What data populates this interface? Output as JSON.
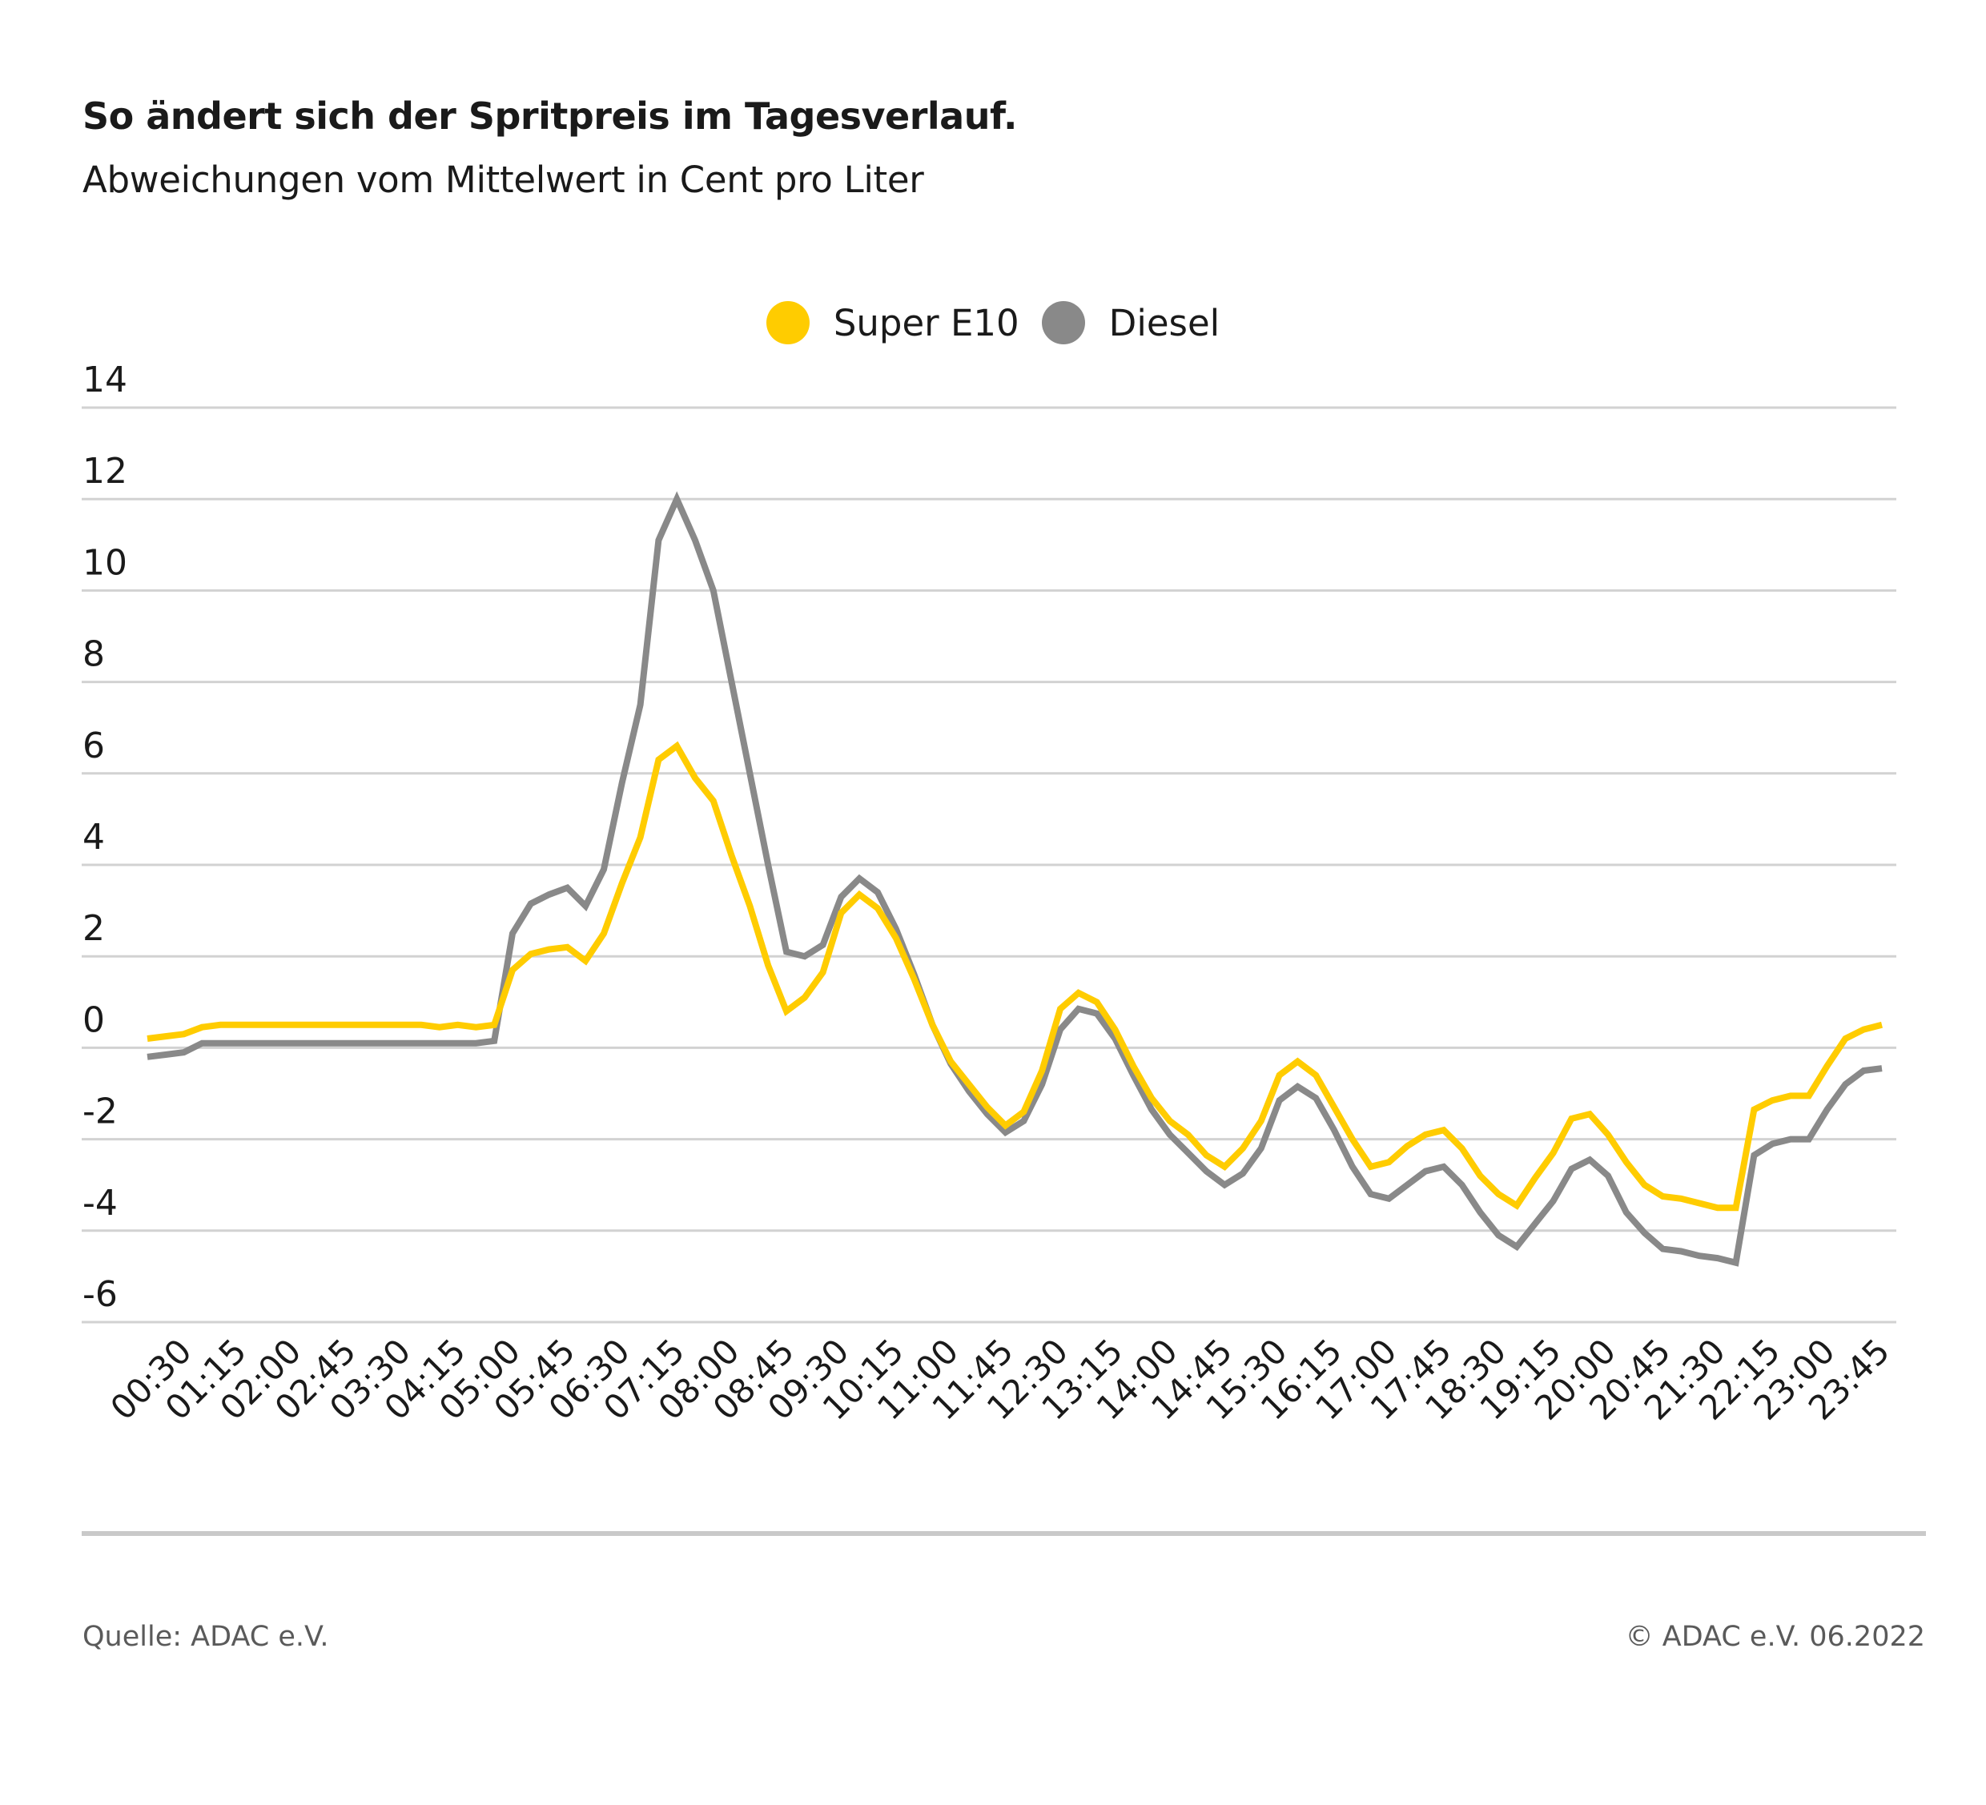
{
  "chart_data": {
    "type": "line",
    "title": "So ändert sich der Spritpreis im Tagesverlauf.",
    "subtitle": "Abweichungen vom Mittelwert in Cent pro Liter",
    "xlabel": "",
    "ylabel": "",
    "ylim": [
      -6,
      14
    ],
    "yticks": [
      "14",
      "12",
      "10",
      "8",
      "6",
      "4",
      "2",
      "0",
      "-2",
      "-4",
      "-6"
    ],
    "ytick_values": [
      14,
      12,
      10,
      8,
      6,
      4,
      2,
      0,
      -2,
      -4,
      -6
    ],
    "grid": true,
    "legend_placement": "top-center",
    "xtick_labels": [
      "00:30",
      "01:15",
      "02:00",
      "02:45",
      "03:30",
      "04:15",
      "05:00",
      "05:45",
      "06:30",
      "07:15",
      "08:00",
      "08:45",
      "09:30",
      "10:15",
      "11:00",
      "11:45",
      "12:30",
      "13:15",
      "14:00",
      "14:45",
      "15:30",
      "16:15",
      "17:00",
      "17:45",
      "18:30",
      "19:15",
      "20:00",
      "20:45",
      "21:30",
      "22:15",
      "23:00",
      "23:45"
    ],
    "x": [
      "00:00",
      "00:15",
      "00:30",
      "00:45",
      "01:00",
      "01:15",
      "01:30",
      "01:45",
      "02:00",
      "02:15",
      "02:30",
      "02:45",
      "03:00",
      "03:15",
      "03:30",
      "03:45",
      "04:00",
      "04:15",
      "04:30",
      "04:45",
      "05:00",
      "05:15",
      "05:30",
      "05:45",
      "06:00",
      "06:15",
      "06:30",
      "06:45",
      "07:00",
      "07:15",
      "07:30",
      "07:45",
      "08:00",
      "08:15",
      "08:30",
      "08:45",
      "09:00",
      "09:15",
      "09:30",
      "09:45",
      "10:00",
      "10:15",
      "10:30",
      "10:45",
      "11:00",
      "11:15",
      "11:30",
      "11:45",
      "12:00",
      "12:15",
      "12:30",
      "12:45",
      "13:00",
      "13:15",
      "13:30",
      "13:45",
      "14:00",
      "14:15",
      "14:30",
      "14:45",
      "15:00",
      "15:15",
      "15:30",
      "15:45",
      "16:00",
      "16:15",
      "16:30",
      "16:45",
      "17:00",
      "17:15",
      "17:30",
      "17:45",
      "18:00",
      "18:15",
      "18:30",
      "18:45",
      "19:00",
      "19:15",
      "19:30",
      "19:45",
      "20:00",
      "20:15",
      "20:30",
      "20:45",
      "21:00",
      "21:15",
      "21:30",
      "21:45",
      "22:00",
      "22:15",
      "22:30",
      "22:45",
      "23:00",
      "23:15",
      "23:30",
      "23:45"
    ],
    "series": [
      {
        "name": "Super E10",
        "color": "#ffcc00",
        "values": [
          0.2,
          0.25,
          0.3,
          0.45,
          0.5,
          0.5,
          0.5,
          0.5,
          0.5,
          0.5,
          0.5,
          0.5,
          0.5,
          0.5,
          0.5,
          0.5,
          0.45,
          0.5,
          0.45,
          0.5,
          1.7,
          2.05,
          2.15,
          2.2,
          1.9,
          2.5,
          3.6,
          4.6,
          6.3,
          6.6,
          5.9,
          5.4,
          4.2,
          3.1,
          1.8,
          0.8,
          1.1,
          1.65,
          2.95,
          3.35,
          3.05,
          2.4,
          1.5,
          0.5,
          -0.3,
          -0.8,
          -1.3,
          -1.7,
          -1.4,
          -0.5,
          0.85,
          1.2,
          1.0,
          0.4,
          -0.4,
          -1.1,
          -1.6,
          -1.9,
          -2.35,
          -2.6,
          -2.2,
          -1.6,
          -0.6,
          -0.3,
          -0.6,
          -1.3,
          -2.0,
          -2.6,
          -2.5,
          -2.15,
          -1.9,
          -1.8,
          -2.2,
          -2.8,
          -3.2,
          -3.45,
          -2.85,
          -2.3,
          -1.55,
          -1.45,
          -1.9,
          -2.5,
          -3.0,
          -3.25,
          -3.3,
          -3.4,
          -3.5,
          -3.5,
          -1.35,
          -1.15,
          -1.05,
          -1.05,
          -0.4,
          0.2,
          0.4,
          0.5
        ]
      },
      {
        "name": "Diesel",
        "color": "#898989",
        "values": [
          -0.2,
          -0.15,
          -0.1,
          0.1,
          0.1,
          0.1,
          0.1,
          0.1,
          0.1,
          0.1,
          0.1,
          0.1,
          0.1,
          0.1,
          0.1,
          0.1,
          0.1,
          0.1,
          0.1,
          0.15,
          2.5,
          3.15,
          3.35,
          3.5,
          3.1,
          3.9,
          5.8,
          7.5,
          11.1,
          12.0,
          11.1,
          10.0,
          8.0,
          6.0,
          4.0,
          2.1,
          2.0,
          2.25,
          3.3,
          3.7,
          3.4,
          2.6,
          1.6,
          0.5,
          -0.35,
          -0.95,
          -1.45,
          -1.85,
          -1.6,
          -0.8,
          0.4,
          0.85,
          0.75,
          0.2,
          -0.6,
          -1.35,
          -1.9,
          -2.3,
          -2.7,
          -3.0,
          -2.75,
          -2.2,
          -1.15,
          -0.85,
          -1.1,
          -1.8,
          -2.6,
          -3.2,
          -3.3,
          -3.0,
          -2.7,
          -2.6,
          -3.0,
          -3.6,
          -4.1,
          -4.35,
          -3.85,
          -3.35,
          -2.65,
          -2.45,
          -2.8,
          -3.6,
          -4.05,
          -4.4,
          -4.45,
          -4.55,
          -4.6,
          -4.7,
          -2.35,
          -2.1,
          -2.0,
          -2.0,
          -1.35,
          -0.8,
          -0.5,
          -0.45
        ]
      }
    ]
  },
  "footer": {
    "source": "Quelle: ADAC e.V.",
    "copyright": "© ADAC e.V. 06.2022"
  },
  "colors": {
    "grid": "#d2d2d2",
    "separator": "#c9c9c9"
  }
}
